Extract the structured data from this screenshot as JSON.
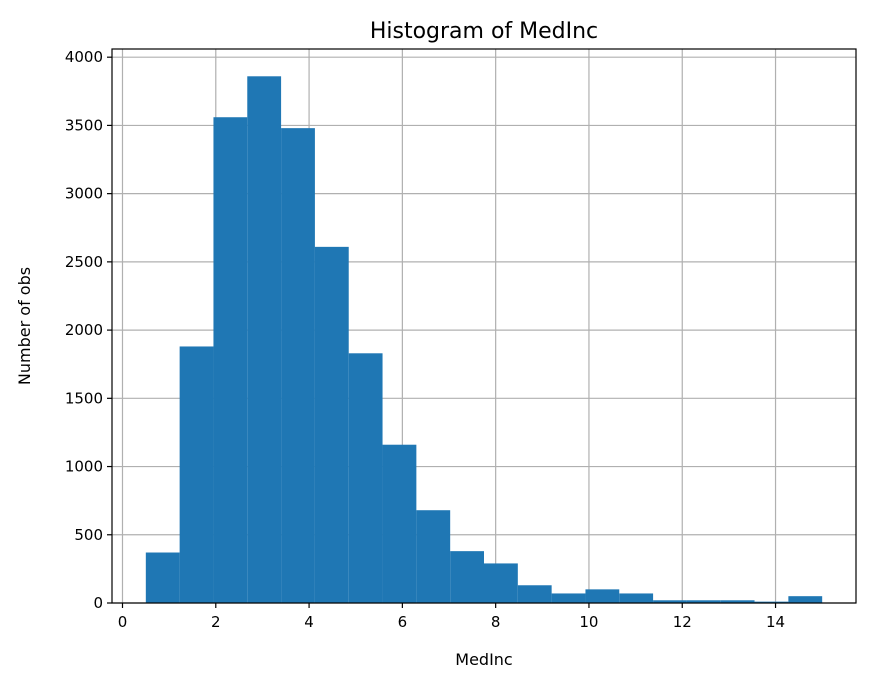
{
  "chart_data": {
    "type": "bar",
    "title": "Histogram of MedInc",
    "xlabel": "MedInc",
    "ylabel": "Number of obs",
    "xlim": [
      -0.225,
      15.725
    ],
    "ylim": [
      0,
      4060
    ],
    "grid": true,
    "color": "#1f77b4",
    "x_ticks": [
      0,
      2,
      4,
      6,
      8,
      10,
      12,
      14
    ],
    "y_ticks": [
      0,
      500,
      1000,
      1500,
      2000,
      2500,
      3000,
      3500,
      4000
    ],
    "bin_edges": [
      0.5,
      1.225,
      1.95,
      2.675,
      3.4,
      4.125,
      4.85,
      5.575,
      6.3,
      7.025,
      7.75,
      8.475,
      9.2,
      9.925,
      10.65,
      11.375,
      12.1,
      12.825,
      13.55,
      14.275,
      15.0
    ],
    "values": [
      370,
      1880,
      3560,
      3860,
      3480,
      2610,
      1830,
      1160,
      680,
      380,
      290,
      130,
      70,
      100,
      70,
      20,
      20,
      20,
      10,
      50
    ]
  }
}
